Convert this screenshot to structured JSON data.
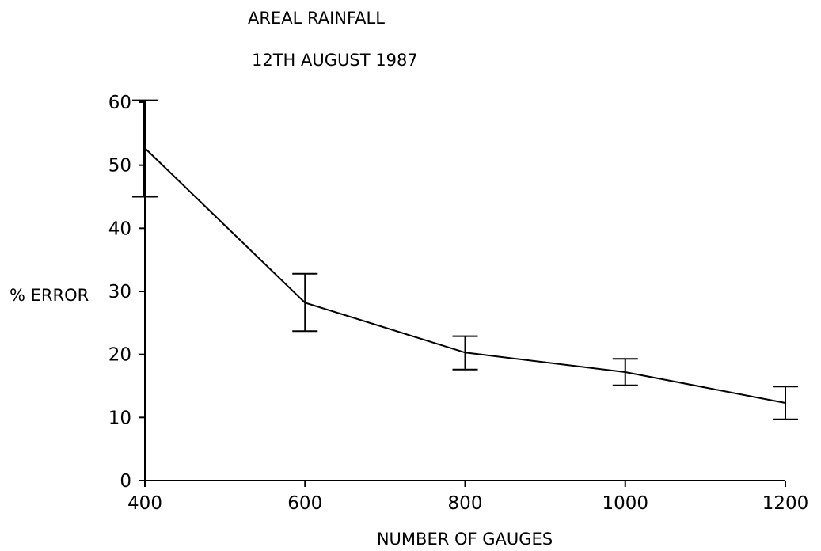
{
  "chart_data": {
    "type": "line",
    "title": "AREAL RAINFALL",
    "subtitle": "12TH AUGUST 1987",
    "xlabel": "NUMBER OF GAUGES",
    "ylabel": "% ERROR",
    "x": [
      400,
      600,
      800,
      1000,
      1200
    ],
    "y": [
      52.7,
      28.2,
      20.3,
      17.2,
      12.3
    ],
    "error_low": [
      45,
      23.7,
      17.6,
      15.1,
      9.7
    ],
    "error_high": [
      60.3,
      32.8,
      22.9,
      19.3,
      14.9
    ],
    "xlim": [
      400,
      1200
    ],
    "ylim": [
      0,
      60
    ],
    "xticks": [
      "400",
      "600",
      "800",
      "1000",
      "1200"
    ],
    "yticks": [
      "0",
      "10",
      "20",
      "30",
      "40",
      "50",
      "60"
    ],
    "grid": false,
    "legend": "none",
    "line_color": "#000000"
  }
}
